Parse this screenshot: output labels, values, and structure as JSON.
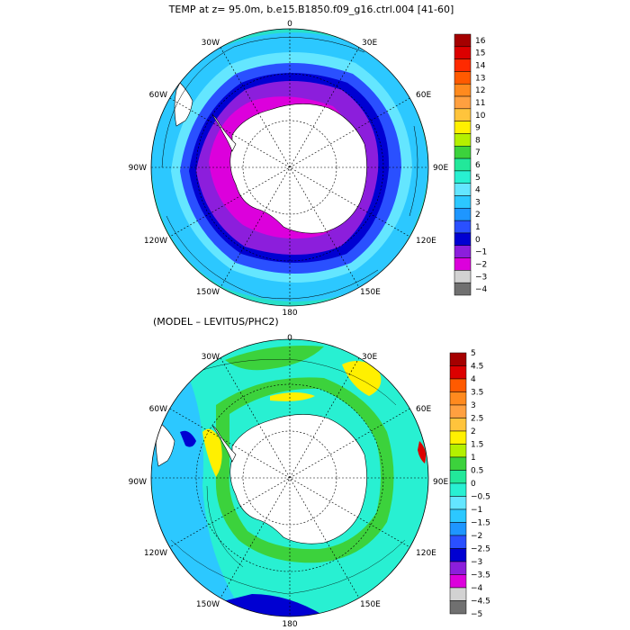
{
  "top_title": "TEMP at z=   95.0m, b.e15.B1850.f09_g16.ctrl.004 [41-60]",
  "bottom_title": "(MODEL – LEVITUS/PHC2)",
  "map_labels": {
    "lon0": "0",
    "lon30e": "30E",
    "lon60e": "60E",
    "lon90e": "90E",
    "lon120e": "120E",
    "lon150e": "150E",
    "lon180": "180",
    "lon150w": "150W",
    "lon120w": "120W",
    "lon90w": "90W",
    "lon60w": "60W",
    "lon30w": "30W"
  },
  "colorbar_top": {
    "labels": [
      "16",
      "15",
      "14",
      "13",
      "12",
      "11",
      "10",
      "9",
      "8",
      "7",
      "6",
      "5",
      "4",
      "3",
      "2",
      "1",
      "0",
      "−1",
      "−2",
      "−3",
      "−4"
    ],
    "colors": [
      "#a50000",
      "#dc0000",
      "#ff2a00",
      "#ff5a00",
      "#ff8a1e",
      "#ffa040",
      "#ffc43c",
      "#fff000",
      "#b4f000",
      "#3cd23c",
      "#22e89a",
      "#28f0d2",
      "#64e6ff",
      "#2cc8ff",
      "#1e96ff",
      "#2a50ff",
      "#0000d2",
      "#8c1edc",
      "#dc00dc",
      "#d2d2d2",
      "#707070"
    ]
  },
  "colorbar_bottom": {
    "labels": [
      "5",
      "4.5",
      "4",
      "3.5",
      "3",
      "2.5",
      "2",
      "1.5",
      "1",
      "0.5",
      "0",
      "−0.5",
      "−1",
      "−1.5",
      "−2",
      "−2.5",
      "−3",
      "−3.5",
      "−4",
      "−4.5",
      "−5"
    ],
    "colors": [
      "#a50000",
      "#dc0000",
      "#ff5a00",
      "#ff8a1e",
      "#ffa040",
      "#ffc43c",
      "#fff000",
      "#b4f000",
      "#3cd23c",
      "#22e89a",
      "#28f0d2",
      "#64e6ff",
      "#2cc8ff",
      "#1e96ff",
      "#2a50ff",
      "#0000d2",
      "#8c1edc",
      "#dc00dc",
      "#d2d2d2",
      "#707070"
    ]
  },
  "map_colors": {
    "ocean_top_outer": "#28e0c8",
    "ocean_top_mid": "#2cc8ff",
    "ocean_top_blue": "#2a50ff",
    "ocean_top_navy": "#0000d2",
    "ocean_top_purple": "#8c1edc",
    "ocean_top_magenta": "#dc00dc",
    "land": "#ffffff",
    "ocean_bot_base": "#28f0d2",
    "ocean_bot_green": "#3cd23c",
    "ocean_bot_yellow": "#fff000",
    "ocean_bot_blue": "#2cc8ff",
    "ocean_bot_navy": "#0000d2"
  }
}
